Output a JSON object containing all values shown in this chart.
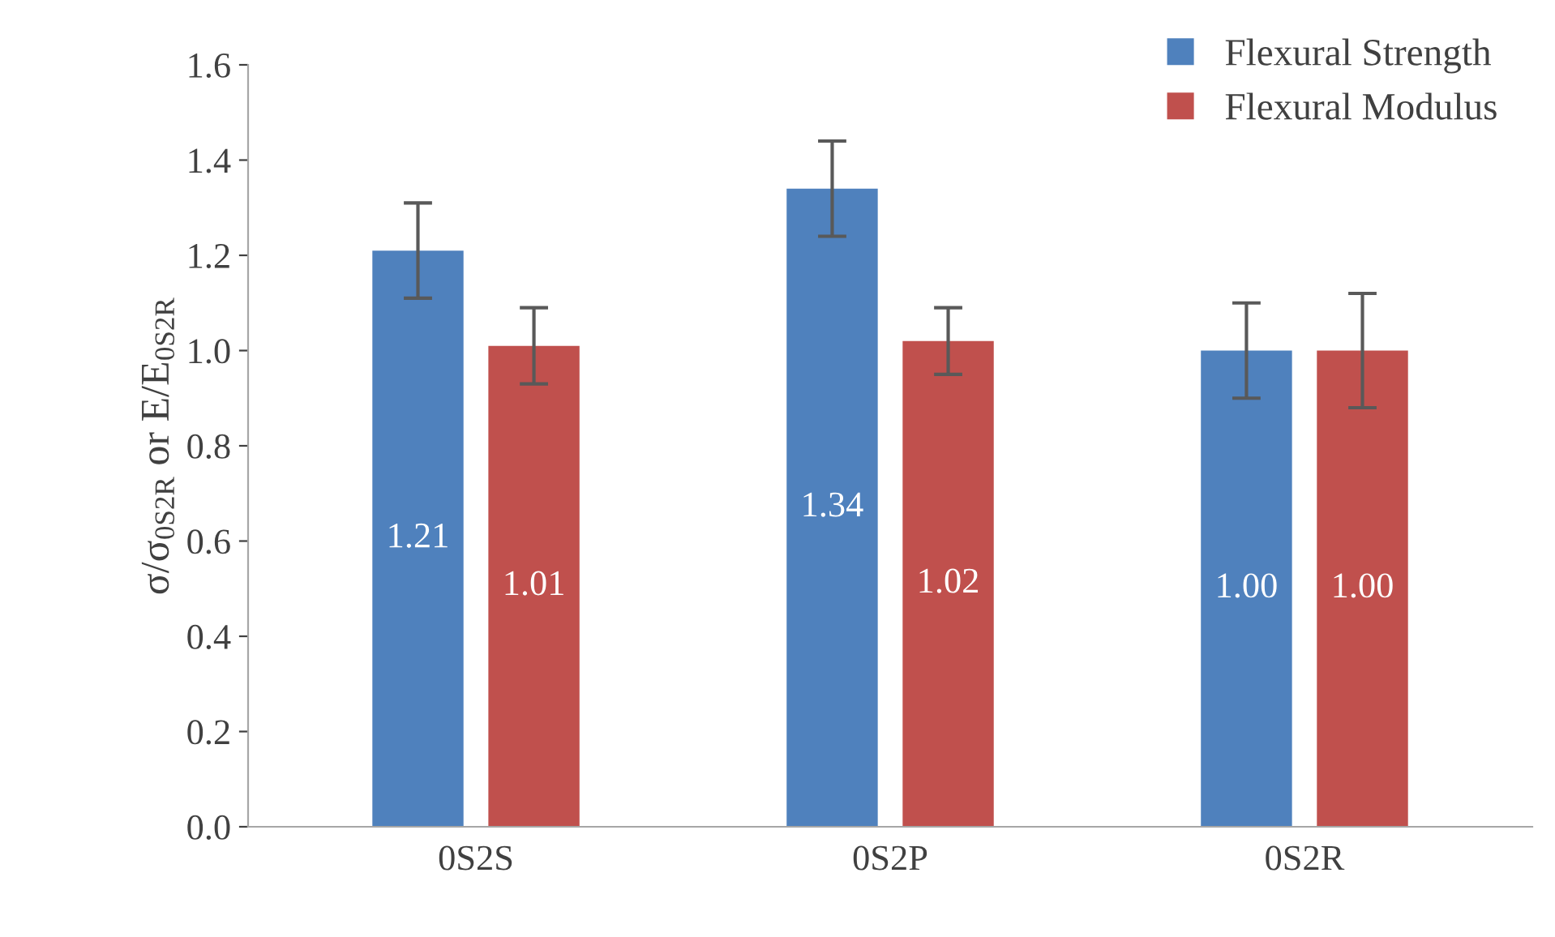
{
  "chart_data": {
    "type": "bar",
    "ylabel": "σ/σ$_{0S2R}$ or E/E$_{0S2R}$",
    "categories": [
      "0S2S",
      "0S2P",
      "0S2R"
    ],
    "series": [
      {
        "name": "Flexural Strength",
        "color": "#4f81bd",
        "values": [
          1.21,
          1.34,
          1.0
        ],
        "errors": [
          0.1,
          0.1,
          0.1
        ],
        "value_labels": [
          "1.21",
          "1.34",
          "1.00"
        ]
      },
      {
        "name": "Flexural Modulus",
        "color": "#c0504d",
        "values": [
          1.01,
          1.02,
          1.0
        ],
        "errors": [
          0.08,
          0.07,
          0.12
        ],
        "value_labels": [
          "1.01",
          "1.02",
          "1.00"
        ]
      }
    ],
    "ylim": [
      0,
      1.6
    ],
    "yticks": [
      {
        "value": 0,
        "label": "0.0"
      },
      0.2,
      0.4,
      0.6,
      0.8,
      {
        "value": 1,
        "label": "1.0"
      },
      1.2,
      1.4,
      1.6
    ],
    "grid": false,
    "legend": "top right"
  }
}
